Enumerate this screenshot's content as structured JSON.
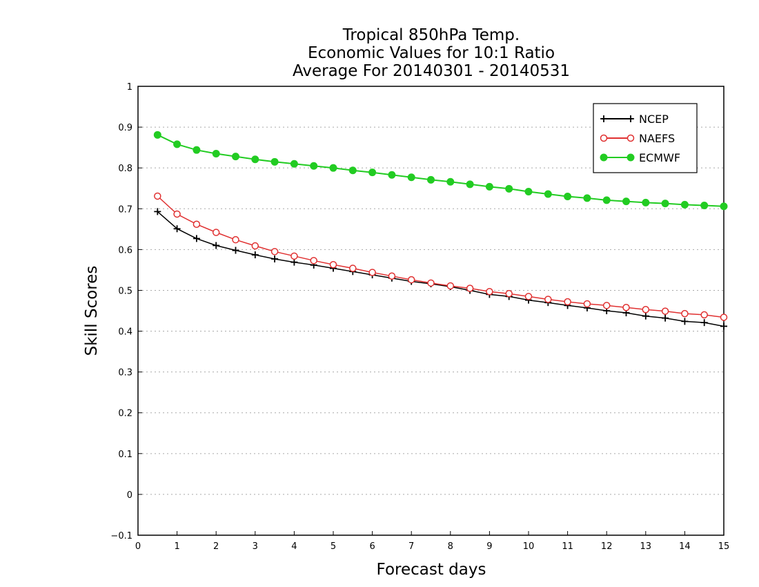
{
  "chart_data": {
    "type": "line",
    "title_lines": [
      "Tropical 850hPa Temp.",
      "Economic Values for 10:1 Ratio",
      "Average For 20140301 - 20140531"
    ],
    "xlabel": "Forecast days",
    "ylabel": "Skill Scores",
    "xlim": [
      0,
      15
    ],
    "ylim": [
      -0.1,
      1
    ],
    "xticks": [
      "0",
      "1",
      "2",
      "3",
      "4",
      "5",
      "6",
      "7",
      "8",
      "9",
      "10",
      "11",
      "12",
      "13",
      "14",
      "15"
    ],
    "yticks": [
      "−0.1",
      "0",
      "0.1",
      "0.2",
      "0.3",
      "0.4",
      "0.5",
      "0.6",
      "0.7",
      "0.8",
      "0.9",
      "1"
    ],
    "grid": "horizontal dotted",
    "legend_position": "top-right",
    "x": [
      0.5,
      1,
      1.5,
      2,
      2.5,
      3,
      3.5,
      4,
      4.5,
      5,
      5.5,
      6,
      6.5,
      7,
      7.5,
      8,
      8.5,
      9,
      9.5,
      10,
      10.5,
      11,
      11.5,
      12,
      12.5,
      13,
      13.5,
      14,
      14.5,
      15
    ],
    "series": [
      {
        "name": "NCEP",
        "color": "#000000",
        "marker": "plus",
        "values": [
          0.693,
          0.651,
          0.627,
          0.61,
          0.598,
          0.587,
          0.577,
          0.569,
          0.562,
          0.554,
          0.546,
          0.538,
          0.53,
          0.522,
          0.516,
          0.509,
          0.5,
          0.49,
          0.485,
          0.476,
          0.47,
          0.463,
          0.457,
          0.45,
          0.445,
          0.437,
          0.432,
          0.424,
          0.421,
          0.412
        ]
      },
      {
        "name": "NAEFS",
        "color": "#e03030",
        "marker": "open-circle",
        "values": [
          0.731,
          0.687,
          0.662,
          0.642,
          0.624,
          0.609,
          0.595,
          0.584,
          0.573,
          0.563,
          0.554,
          0.544,
          0.535,
          0.526,
          0.518,
          0.511,
          0.505,
          0.497,
          0.492,
          0.485,
          0.478,
          0.472,
          0.467,
          0.463,
          0.458,
          0.453,
          0.449,
          0.443,
          0.44,
          0.434
        ]
      },
      {
        "name": "ECMWF",
        "color": "#22cc22",
        "marker": "filled-circle",
        "values": [
          0.881,
          0.858,
          0.844,
          0.835,
          0.828,
          0.821,
          0.815,
          0.81,
          0.805,
          0.8,
          0.794,
          0.789,
          0.783,
          0.777,
          0.771,
          0.766,
          0.76,
          0.754,
          0.749,
          0.742,
          0.736,
          0.73,
          0.726,
          0.721,
          0.718,
          0.715,
          0.713,
          0.71,
          0.708,
          0.706
        ]
      }
    ]
  }
}
